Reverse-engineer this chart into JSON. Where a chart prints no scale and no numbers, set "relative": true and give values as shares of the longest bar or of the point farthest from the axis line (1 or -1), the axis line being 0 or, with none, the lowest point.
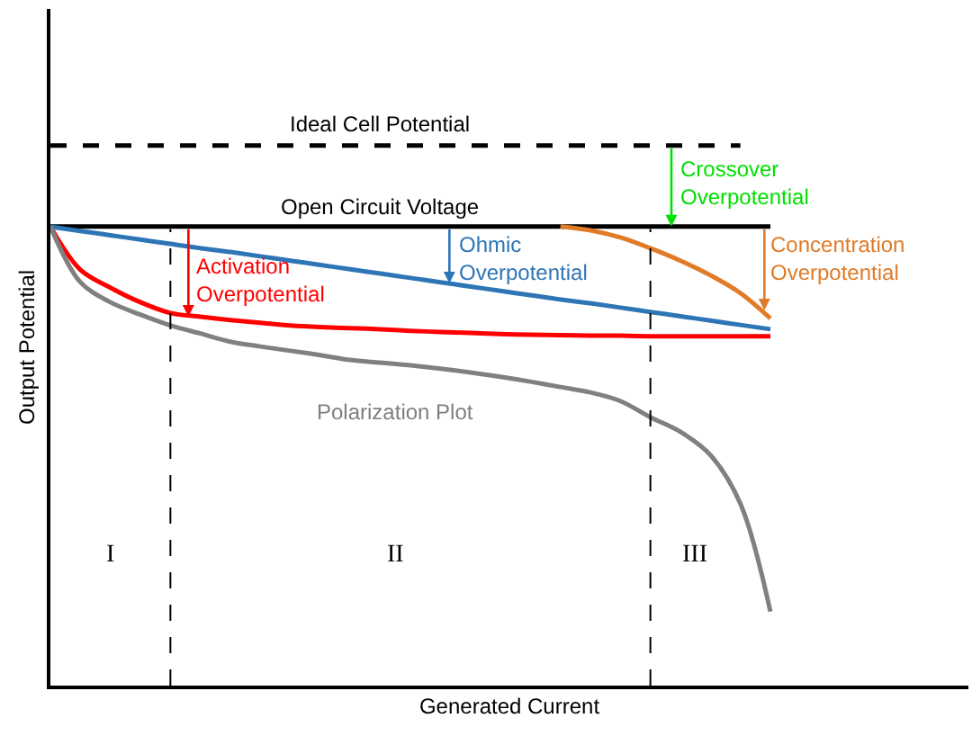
{
  "chart_data": {
    "type": "line",
    "relative": true,
    "xlabel": "Generated Current",
    "ylabel": "Output Potential",
    "legend": false,
    "marker": "none",
    "categories": [
      null,
      null,
      null,
      null,
      null,
      null,
      null,
      null,
      null,
      null,
      null,
      null,
      null,
      null,
      null,
      null,
      null,
      null,
      null,
      null,
      null,
      null,
      null,
      null,
      null,
      null,
      null,
      null,
      null,
      null,
      null
    ],
    "series": [
      {
        "name": "Ideal Cell Potential",
        "color": "#000000",
        "line_style": "dashed",
        "values": [
          1,
          1,
          1,
          1,
          1,
          1,
          1,
          1,
          1,
          1,
          1,
          1,
          1,
          1,
          1,
          1,
          1,
          1,
          1,
          1,
          1,
          1,
          1,
          1,
          null,
          null,
          null,
          null,
          null,
          null,
          null
        ]
      },
      {
        "name": "Open Circuit Voltage",
        "color": "#000000",
        "values": [
          0.85,
          0.85,
          0.85,
          0.85,
          0.85,
          0.85,
          0.85,
          0.85,
          0.85,
          0.85,
          0.85,
          0.85,
          0.85,
          0.85,
          0.85,
          0.85,
          0.85,
          0.85,
          0.85,
          0.85,
          0.85,
          0.85,
          0.85,
          0.85,
          0.85,
          null,
          null,
          null,
          null,
          null,
          null
        ]
      },
      {
        "color": "#ff0000",
        "values": [
          0.85,
          0.77,
          0.737,
          0.71,
          0.69,
          0.683,
          0.677,
          0.672,
          0.667,
          0.664,
          0.662,
          0.66,
          0.657,
          0.655,
          0.653,
          0.651,
          0.65,
          0.649,
          0.648,
          0.648,
          0.647,
          0.647,
          0.647,
          0.647,
          0.647,
          null,
          null,
          null,
          null,
          null,
          null
        ]
      },
      {
        "color": "#2e75b6",
        "values": [
          0.85,
          0.842,
          0.834,
          0.826,
          0.818,
          0.81,
          0.803,
          0.795,
          0.787,
          0.779,
          0.771,
          0.763,
          0.755,
          0.747,
          0.739,
          0.731,
          0.723,
          0.715,
          0.708,
          0.7,
          0.692,
          0.684,
          0.676,
          0.668,
          0.66,
          null,
          null,
          null,
          null,
          null,
          null
        ]
      },
      {
        "color": "#e07b28",
        "values": [
          null,
          null,
          null,
          null,
          null,
          null,
          null,
          null,
          null,
          null,
          null,
          null,
          null,
          null,
          null,
          null,
          null,
          0.85,
          0.843,
          0.83,
          0.81,
          0.787,
          0.76,
          0.727,
          0.68,
          null,
          null,
          null,
          null,
          null,
          null
        ]
      },
      {
        "name": "Polarization Plot",
        "color": "#808080",
        "values": [
          0.85,
          0.747,
          0.71,
          0.687,
          0.667,
          0.652,
          0.637,
          0.628,
          0.62,
          0.612,
          0.603,
          0.598,
          0.593,
          0.587,
          0.58,
          0.572,
          0.563,
          0.553,
          0.543,
          0.527,
          0.497,
          0.47,
          0.427,
          0.337,
          0.137,
          null,
          null,
          null,
          null,
          null,
          null
        ]
      }
    ],
    "annotations": [
      "Activation Overpotential",
      "Ohmic Overpotential",
      "Concentration Overpotential",
      "Crossover Overpotential",
      "I",
      "II",
      "III"
    ]
  }
}
